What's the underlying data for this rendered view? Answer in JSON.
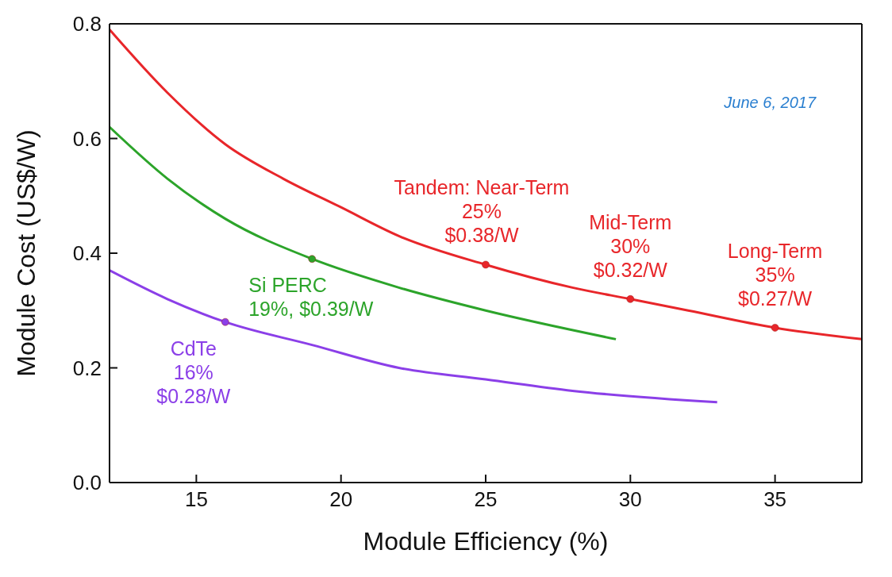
{
  "chart_data": {
    "type": "line",
    "xlabel": "Module Efficiency (%)",
    "ylabel": "Module Cost (US$/W)",
    "xlim": [
      12,
      38
    ],
    "xticks": [
      15,
      20,
      25,
      30,
      35
    ],
    "ylim": [
      0,
      0.8
    ],
    "yticks": [
      {
        "value": 0,
        "label": "0.0"
      },
      0.2,
      0.4,
      0.6,
      0.8
    ],
    "series": [
      {
        "color": "#e8262a",
        "marker": "none",
        "x": [
          12,
          14,
          16,
          18,
          20,
          22,
          25,
          28,
          30,
          32,
          35,
          38
        ],
        "values": [
          0.79,
          0.68,
          0.59,
          0.53,
          0.48,
          0.43,
          0.38,
          0.34,
          0.32,
          0.3,
          0.27,
          0.25
        ]
      },
      {
        "color": "#2ca42a",
        "marker": "none",
        "x": [
          12,
          14,
          16,
          19,
          22,
          25,
          29.5
        ],
        "values": [
          0.62,
          0.53,
          0.46,
          0.39,
          0.34,
          0.3,
          0.25
        ]
      },
      {
        "color": "#8b3fe8",
        "marker": "none",
        "x": [
          12,
          14,
          16,
          19,
          22,
          25,
          28,
          33
        ],
        "values": [
          0.37,
          0.32,
          0.28,
          0.24,
          0.2,
          0.18,
          0.16,
          0.14
        ]
      },
      {
        "type": "scatter",
        "color": "#e8262a",
        "marker": "circle",
        "x": [
          25,
          30,
          35
        ],
        "values": [
          0.38,
          0.32,
          0.27
        ]
      },
      {
        "type": "scatter",
        "color": "#2ca42a",
        "marker": "circle",
        "x": [
          19
        ],
        "values": [
          0.39
        ]
      },
      {
        "type": "scatter",
        "color": "#8b3fe8",
        "marker": "circle",
        "x": [
          16
        ],
        "values": [
          0.28
        ]
      }
    ],
    "annotations": [
      {
        "text": "Tandem: Near-Term\n25%\n$0.38/W",
        "x": 25,
        "y": 0.38
      },
      {
        "text": "Mid-Term\n30%\n$0.32/W",
        "x": 30,
        "y": 0.32
      },
      {
        "text": "Long-Term\n35%\n$0.27/W",
        "x": 35,
        "y": 0.27
      },
      {
        "text": "Si PERC\n19%, $0.39/W",
        "x": 19,
        "y": 0.39
      },
      {
        "text": "CdTe\n16%\n$0.28/W",
        "x": 16,
        "y": 0.28
      },
      "June 6, 2017"
    ]
  }
}
